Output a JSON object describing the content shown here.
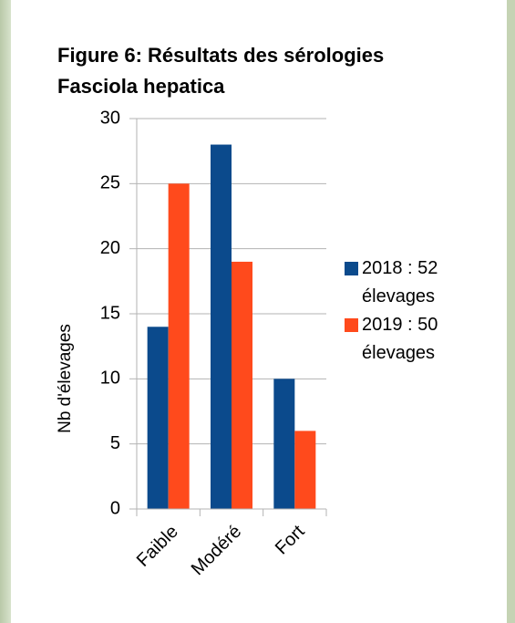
{
  "chart_data": {
    "type": "bar",
    "title": [
      "Figure 6: Résultats des sérologies",
      "Fasciola hepatica"
    ],
    "y_label": "Nb d'élevages",
    "categories": [
      "Faible",
      "Modéré",
      "Fort"
    ],
    "series": [
      {
        "name": "2018 : 52 élevages",
        "color": "#0b4a8c",
        "values": [
          14,
          28,
          10
        ]
      },
      {
        "name": "2019 : 50 élevages",
        "color": "#ff4a1c",
        "values": [
          25,
          19,
          6
        ]
      }
    ],
    "ylim": [
      0,
      30
    ],
    "yticks": [
      0,
      5,
      10,
      15,
      20,
      25,
      30
    ],
    "grid": true,
    "legend": "right"
  }
}
